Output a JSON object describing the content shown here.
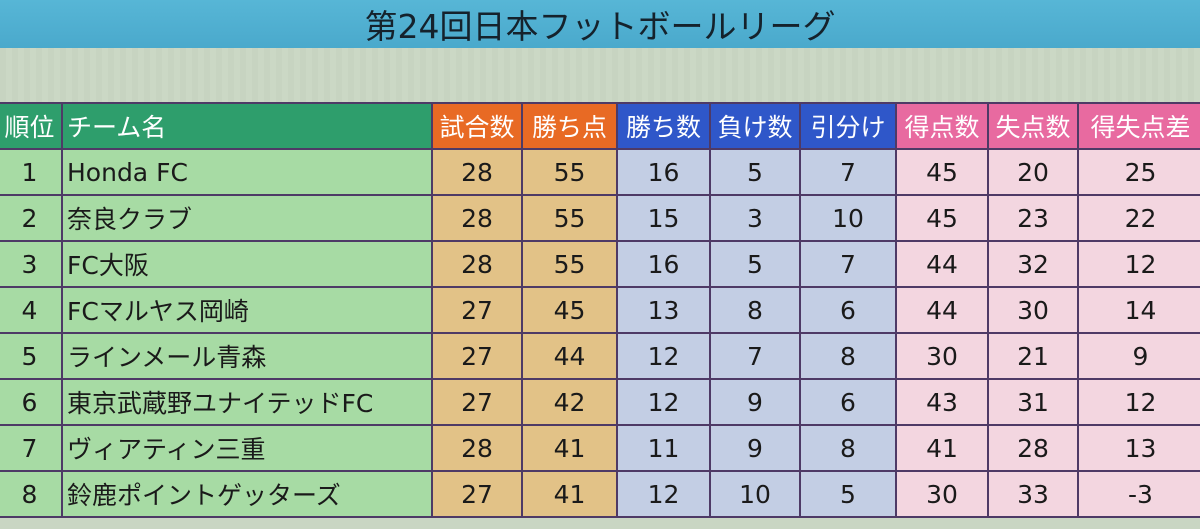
{
  "title": "第24回日本フットボールリーグ",
  "headers": [
    "順位",
    "チーム名",
    "試合数",
    "勝ち点",
    "勝ち数",
    "負け数",
    "引分け",
    "得点数",
    "失点数",
    "得失点差"
  ],
  "rows": [
    {
      "rank": "1",
      "team": "Honda FC",
      "played": "28",
      "points": "55",
      "wins": "16",
      "losses": "5",
      "draws": "7",
      "gf": "45",
      "ga": "20",
      "gd": "25"
    },
    {
      "rank": "2",
      "team": "奈良クラブ",
      "played": "28",
      "points": "55",
      "wins": "15",
      "losses": "3",
      "draws": "10",
      "gf": "45",
      "ga": "23",
      "gd": "22"
    },
    {
      "rank": "3",
      "team": "FC大阪",
      "played": "28",
      "points": "55",
      "wins": "16",
      "losses": "5",
      "draws": "7",
      "gf": "44",
      "ga": "32",
      "gd": "12"
    },
    {
      "rank": "4",
      "team": "FCマルヤス岡崎",
      "played": "27",
      "points": "45",
      "wins": "13",
      "losses": "8",
      "draws": "6",
      "gf": "44",
      "ga": "30",
      "gd": "14"
    },
    {
      "rank": "5",
      "team": "ラインメール青森",
      "played": "27",
      "points": "44",
      "wins": "12",
      "losses": "7",
      "draws": "8",
      "gf": "30",
      "ga": "21",
      "gd": "9"
    },
    {
      "rank": "6",
      "team": "東京武蔵野ユナイテッドFC",
      "played": "27",
      "points": "42",
      "wins": "12",
      "losses": "9",
      "draws": "6",
      "gf": "43",
      "ga": "31",
      "gd": "12"
    },
    {
      "rank": "7",
      "team": "ヴィアティン三重",
      "played": "28",
      "points": "41",
      "wins": "11",
      "losses": "9",
      "draws": "8",
      "gf": "41",
      "ga": "28",
      "gd": "13"
    },
    {
      "rank": "8",
      "team": "鈴鹿ポイントゲッターズ",
      "played": "27",
      "points": "41",
      "wins": "12",
      "losses": "10",
      "draws": "5",
      "gf": "30",
      "ga": "33",
      "gd": "-3"
    }
  ],
  "colors": {
    "title_bg": "#4aa9cc",
    "header_green": "#2e9e6c",
    "header_orange": "#e86a24",
    "header_blue": "#2f57c9",
    "header_pink": "#e86aa0",
    "cell_green": "#a7dba4",
    "cell_orange": "#e2c287",
    "cell_blue": "#c3cee4",
    "cell_pink": "#f3d6e0",
    "border": "#4e3a66"
  }
}
